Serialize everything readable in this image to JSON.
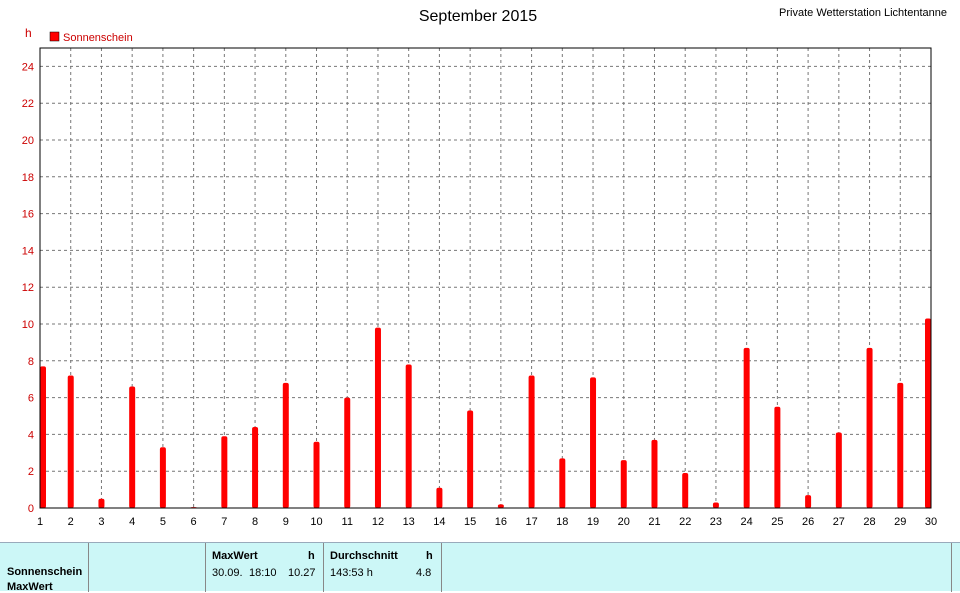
{
  "header": {
    "title": "September 2015",
    "station": "Private Wetterstation Lichtentanne",
    "y_unit": "h"
  },
  "legend": {
    "label": "Sonnenschein",
    "color": "#ff0000"
  },
  "chart_data": {
    "type": "bar",
    "title": "September 2015",
    "xlabel": "",
    "ylabel": "h",
    "categories": [
      "1",
      "2",
      "3",
      "4",
      "5",
      "6",
      "7",
      "8",
      "9",
      "10",
      "11",
      "12",
      "13",
      "14",
      "15",
      "16",
      "17",
      "18",
      "19",
      "20",
      "21",
      "22",
      "23",
      "24",
      "25",
      "26",
      "27",
      "28",
      "29",
      "30"
    ],
    "series": [
      {
        "name": "Sonnenschein",
        "color": "#ff0000",
        "values": [
          7.7,
          7.2,
          0.5,
          6.6,
          3.3,
          0.05,
          3.9,
          4.4,
          6.8,
          3.6,
          6.0,
          9.8,
          7.8,
          1.1,
          5.3,
          0.2,
          7.2,
          2.7,
          7.1,
          2.6,
          3.7,
          1.9,
          0.3,
          8.7,
          5.5,
          0.7,
          4.1,
          8.7,
          6.8,
          10.3
        ]
      }
    ],
    "ylim": [
      0,
      25
    ],
    "yticks": [
      0,
      2,
      4,
      6,
      8,
      10,
      12,
      14,
      16,
      18,
      20,
      22,
      24
    ],
    "grid": true,
    "legend_position": "top-left"
  },
  "stats": {
    "row_label_1": "Sonnenschein",
    "row_label_2": "MaxWert",
    "max_header": "MaxWert",
    "max_unit": "h",
    "max_date": "30.09.",
    "max_time": "18:10",
    "max_value": "10.27",
    "avg_header": "Durchschnitt",
    "avg_unit": "h",
    "avg_total": "143:53 h",
    "avg_value": "4.8"
  }
}
